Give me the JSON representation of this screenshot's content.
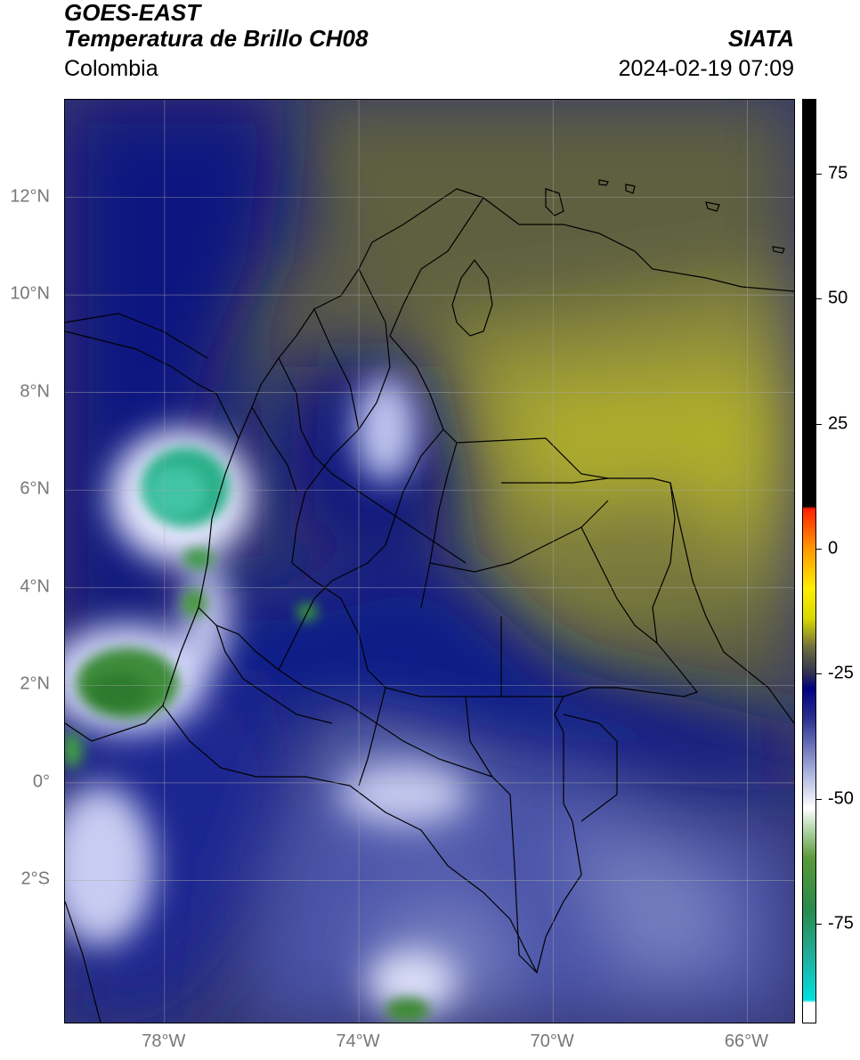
{
  "header": {
    "title_line1": "GOES-EAST",
    "title_line2": "Temperatura de Brillo CH08",
    "region": "Colombia",
    "organization": "SIATA",
    "timestamp": "2024-02-19 07:09"
  },
  "map": {
    "bounds": {
      "lon_min": -80.05,
      "lon_max": -65.0,
      "lat_min": -4.95,
      "lat_max": 14.0
    },
    "lat_ticks": [
      {
        "value": 12,
        "label": "12°N"
      },
      {
        "value": 10,
        "label": "10°N"
      },
      {
        "value": 8,
        "label": "8°N"
      },
      {
        "value": 6,
        "label": "6°N"
      },
      {
        "value": 4,
        "label": "4°N"
      },
      {
        "value": 2,
        "label": "2°N"
      },
      {
        "value": 0,
        "label": "0°"
      },
      {
        "value": -2,
        "label": "2°S"
      }
    ],
    "lon_ticks": [
      {
        "value": -78,
        "label": "78°W"
      },
      {
        "value": -74,
        "label": "74°W"
      },
      {
        "value": -70,
        "label": "70°W"
      },
      {
        "value": -66,
        "label": "66°W"
      }
    ],
    "colors": {
      "grid": "#aaaaaa",
      "border": "#000000"
    }
  },
  "colorbar": {
    "range": [
      -95,
      90
    ],
    "ticks": [
      {
        "value": 75,
        "label": "75"
      },
      {
        "value": 50,
        "label": "50"
      },
      {
        "value": 25,
        "label": "25"
      },
      {
        "value": 0,
        "label": "0"
      },
      {
        "value": -25,
        "label": "-25"
      },
      {
        "value": -50,
        "label": "-50"
      },
      {
        "value": -75,
        "label": "-75"
      }
    ],
    "stops": [
      {
        "value": -95,
        "color": "#ffffff"
      },
      {
        "value": -91,
        "color": "#ffffff"
      },
      {
        "value": -90.5,
        "color": "#00e0e0"
      },
      {
        "value": -82,
        "color": "#20b0a0"
      },
      {
        "value": -72,
        "color": "#2a8a4a"
      },
      {
        "value": -62,
        "color": "#5a9a3a"
      },
      {
        "value": -56,
        "color": "#b8d8b0"
      },
      {
        "value": -52,
        "color": "#ffffff"
      },
      {
        "value": -44,
        "color": "#a0a8d8"
      },
      {
        "value": -34,
        "color": "#2a3090"
      },
      {
        "value": -28,
        "color": "#000080"
      },
      {
        "value": -25,
        "color": "#303050"
      },
      {
        "value": -20,
        "color": "#6a6a40"
      },
      {
        "value": -14,
        "color": "#d8d800"
      },
      {
        "value": -8,
        "color": "#ffee00"
      },
      {
        "value": 0,
        "color": "#ff9900"
      },
      {
        "value": 8,
        "color": "#ff2000"
      },
      {
        "value": 8.5,
        "color": "#000000"
      },
      {
        "value": 90,
        "color": "#000000"
      }
    ]
  }
}
